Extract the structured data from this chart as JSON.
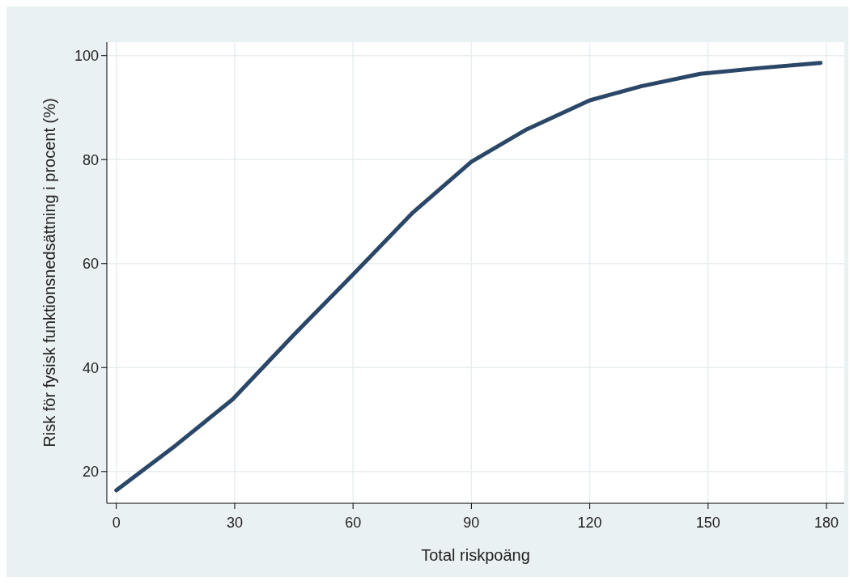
{
  "chart_data": {
    "type": "line",
    "xlabel": "Total riskpoäng",
    "ylabel": "Risk för fysisk funktionsnedsättning i procent (%)",
    "x": [
      0,
      15,
      29.5,
      45,
      60,
      75,
      90,
      104,
      120,
      133,
      148,
      163,
      178.5
    ],
    "series": [
      {
        "color": "#2b4767",
        "values": [
          16.4,
          25,
          33.9,
          46.3,
          57.9,
          69.7,
          79.6,
          85.8,
          91.4,
          94.1,
          96.5,
          97.6,
          98.6
        ]
      }
    ],
    "xlim": [
      -2.4,
      184.5
    ],
    "ylim": [
      13.9,
      102.6
    ],
    "xticks": [
      0,
      30,
      60,
      90,
      120,
      150,
      180
    ],
    "yticks": [
      20,
      40,
      60,
      80,
      100
    ],
    "grid": true,
    "marker": "none",
    "line_style": "solid"
  }
}
